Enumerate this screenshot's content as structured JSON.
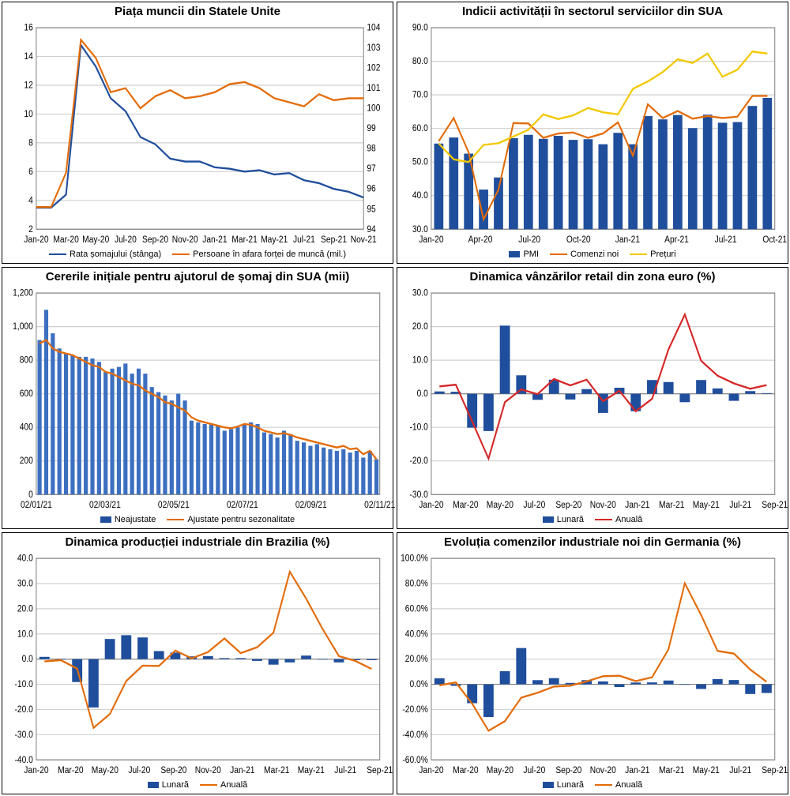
{
  "colors": {
    "blue_line": "#1f4e9c",
    "orange_line": "#e36c0a",
    "red_line": "#d62728",
    "yellow_line": "#f2c800",
    "bar_blue": "#1f4e9c",
    "bar_blue_light": "#3c6fc0",
    "grid": "#d0d0d0",
    "axis": "#808080",
    "text": "#000000"
  },
  "x_labels_jan20_nov21_bi": [
    "Jan-20",
    "Mar-20",
    "May-20",
    "Jul-20",
    "Sep-20",
    "Nov-20",
    "Jan-21",
    "Mar-21",
    "May-21",
    "Jul-21",
    "Sep-21",
    "Nov-21"
  ],
  "x_labels_jan20_oct21_q": [
    "Jan-20",
    "Apr-20",
    "Jul-20",
    "Oct-20",
    "Jan-21",
    "Apr-21",
    "Jul-21",
    "Oct-21"
  ],
  "x_labels_jan20_sep21_bi": [
    "Jan-20",
    "Mar-20",
    "May-20",
    "Jul-20",
    "Sep-20",
    "Nov-20",
    "Jan-21",
    "Mar-21",
    "May-21",
    "Jul-21",
    "Sep-21"
  ],
  "x_labels_claims": [
    "02/01/21",
    "02/03/21",
    "02/05/21",
    "02/07/21",
    "02/09/21",
    "02/11/21"
  ],
  "chart1": {
    "title": "Piața muncii din Statele Unite",
    "type": "dual-axis-line",
    "y_left": {
      "min": 2,
      "max": 16,
      "step": 2
    },
    "y_right": {
      "min": 94,
      "max": 104,
      "step": 1
    },
    "x_labels_key": "x_labels_jan20_nov21_bi",
    "series": [
      {
        "name": "Rata șomajului (stânga)",
        "color_key": "blue_line",
        "axis": "left",
        "kind": "line",
        "values": [
          3.5,
          3.5,
          4.4,
          14.8,
          13.3,
          11.1,
          10.2,
          8.4,
          7.9,
          6.9,
          6.7,
          6.7,
          6.3,
          6.2,
          6.0,
          6.1,
          5.8,
          5.9,
          5.4,
          5.2,
          4.8,
          4.6,
          4.2
        ]
      },
      {
        "name": "Persoane în afara forței de muncă (mil.)",
        "color_key": "orange_line",
        "axis": "right",
        "kind": "line",
        "values": [
          95.1,
          95.1,
          96.8,
          103.4,
          102.5,
          100.8,
          101.0,
          100.0,
          100.6,
          100.9,
          100.5,
          100.6,
          100.8,
          101.2,
          101.3,
          101.0,
          100.5,
          100.3,
          100.1,
          100.7,
          100.4,
          100.5,
          100.5
        ]
      }
    ],
    "legend": [
      {
        "label": "Rata șomajului (stânga)",
        "kind": "line",
        "color_key": "blue_line"
      },
      {
        "label": "Persoane în afara forței de muncă (mil.)",
        "kind": "line",
        "color_key": "orange_line"
      }
    ]
  },
  "chart2": {
    "title": "Indicii activității în sectorul serviciilor din SUA",
    "type": "bar-line",
    "y": {
      "min": 30,
      "max": 90,
      "step": 10,
      "fmt": "fixed1"
    },
    "x_labels_key": "x_labels_jan20_oct21_q",
    "series": [
      {
        "name": "PMI",
        "color_key": "bar_blue",
        "kind": "bar",
        "values": [
          55.5,
          57.3,
          52.5,
          41.8,
          45.4,
          57.1,
          58.1,
          56.9,
          57.8,
          56.6,
          56.8,
          55.3,
          58.7,
          55.3,
          63.7,
          62.7,
          64.0,
          60.1,
          64.1,
          61.7,
          61.9,
          66.7,
          69.1
        ]
      },
      {
        "name": "Comenzi noi",
        "color_key": "orange_line",
        "kind": "line",
        "values": [
          56.2,
          63.1,
          52.9,
          32.9,
          41.8,
          61.6,
          61.5,
          57.2,
          58.5,
          58.8,
          57.2,
          58.5,
          61.8,
          51.9,
          67.2,
          63.1,
          65.2,
          62.9,
          63.7,
          63.1,
          63.5,
          69.7,
          69.7
        ]
      },
      {
        "name": "Prețuri",
        "color_key": "yellow_line",
        "kind": "line",
        "values": [
          55.5,
          50.8,
          50.0,
          55.1,
          55.6,
          57.6,
          59.6,
          64.2,
          62.8,
          63.9,
          66.1,
          64.8,
          64.2,
          71.8,
          74.0,
          76.8,
          80.6,
          79.5,
          82.3,
          75.4,
          77.5,
          82.9,
          82.3
        ]
      }
    ],
    "legend": [
      {
        "label": "PMI",
        "kind": "bar",
        "color_key": "bar_blue"
      },
      {
        "label": "Comenzi noi",
        "kind": "line",
        "color_key": "orange_line"
      },
      {
        "label": "Prețuri",
        "kind": "line",
        "color_key": "yellow_line"
      }
    ]
  },
  "chart3": {
    "title": "Cererile inițiale pentru ajutorul de șomaj din SUA (mii)",
    "type": "bar-line",
    "y": {
      "min": 0,
      "max": 1200,
      "step": 200,
      "fmt": "comma"
    },
    "x_labels_key": "x_labels_claims",
    "series": [
      {
        "name": "Neajustate",
        "color_key": "bar_blue_light",
        "kind": "bar",
        "values": [
          920,
          1100,
          960,
          870,
          840,
          830,
          820,
          820,
          810,
          790,
          730,
          750,
          760,
          780,
          720,
          750,
          720,
          640,
          610,
          590,
          560,
          600,
          560,
          440,
          430,
          420,
          420,
          410,
          380,
          390,
          400,
          420,
          430,
          420,
          370,
          360,
          340,
          380,
          360,
          320,
          310,
          290,
          300,
          280,
          270,
          260,
          270,
          250,
          260,
          220,
          260,
          210
        ]
      },
      {
        "name": "Ajustate pentru sezonalitate",
        "color_key": "orange_line",
        "kind": "line",
        "values": [
          900,
          920,
          870,
          850,
          840,
          830,
          810,
          790,
          770,
          760,
          730,
          720,
          700,
          680,
          660,
          650,
          620,
          600,
          580,
          550,
          540,
          520,
          500,
          460,
          440,
          430,
          420,
          410,
          400,
          395,
          405,
          420,
          415,
          400,
          380,
          370,
          360,
          365,
          355,
          340,
          330,
          320,
          310,
          300,
          290,
          280,
          290,
          270,
          275,
          240,
          260,
          210
        ]
      }
    ],
    "legend": [
      {
        "label": "Neajustate",
        "kind": "bar",
        "color_key": "bar_blue"
      },
      {
        "label": "Ajustate pentru sezonalitate",
        "kind": "line",
        "color_key": "orange_line"
      }
    ]
  },
  "chart4": {
    "title": "Dinamica vânzărilor retail din zona euro (%)",
    "type": "bar-line",
    "y": {
      "min": -30,
      "max": 30,
      "step": 10,
      "fmt": "fixed1"
    },
    "x_labels_key": "x_labels_jan20_sep21_bi",
    "series": [
      {
        "name": "Lunară",
        "color_key": "bar_blue",
        "kind": "bar",
        "values": [
          0.7,
          0.6,
          -10.1,
          -11.1,
          20.3,
          5.5,
          -1.8,
          4.2,
          -1.7,
          1.4,
          -5.7,
          1.8,
          -5.2,
          4.1,
          3.5,
          -2.5,
          4.1,
          1.6,
          -2.1,
          0.8,
          0.2
        ]
      },
      {
        "name": "Anuală",
        "color_key": "red_line",
        "kind": "line",
        "values": [
          2.2,
          2.7,
          -8.2,
          -19.3,
          -2.5,
          1.3,
          -0.1,
          4.4,
          2.5,
          4.2,
          -2.2,
          0.9,
          -5.2,
          -1.5,
          13.2,
          23.6,
          9.8,
          5.4,
          3.1,
          1.5,
          2.6
        ]
      }
    ],
    "legend": [
      {
        "label": "Lunară",
        "kind": "bar",
        "color_key": "bar_blue"
      },
      {
        "label": "Anuală",
        "kind": "line",
        "color_key": "red_line"
      }
    ]
  },
  "chart5": {
    "title": "Dinamica producției industriale din Brazilia (%)",
    "type": "bar-line",
    "y": {
      "min": -40,
      "max": 40,
      "step": 10,
      "fmt": "fixed1"
    },
    "x_labels_key": "x_labels_jan20_sep21_bi",
    "series": [
      {
        "name": "Lunară",
        "color_key": "bar_blue",
        "kind": "bar",
        "values": [
          0.9,
          -0.2,
          -9.1,
          -19.2,
          8.0,
          9.5,
          8.6,
          3.2,
          2.6,
          1.1,
          1.2,
          0.4,
          0.4,
          -0.7,
          -2.2,
          -1.3,
          1.4,
          0.0,
          -1.3,
          -0.4,
          -0.4
        ]
      },
      {
        "name": "Anuală",
        "color_key": "orange_line",
        "kind": "line",
        "values": [
          -0.9,
          -0.4,
          -3.8,
          -27.3,
          -21.8,
          -8.7,
          -2.6,
          -2.7,
          3.4,
          0.3,
          2.8,
          8.2,
          2.4,
          4.7,
          10.5,
          34.7,
          24.0,
          12.0,
          1.2,
          -0.7,
          -3.9
        ]
      }
    ],
    "legend": [
      {
        "label": "Lunară",
        "kind": "bar",
        "color_key": "bar_blue"
      },
      {
        "label": "Anuală",
        "kind": "line",
        "color_key": "orange_line"
      }
    ]
  },
  "chart6": {
    "title": "Evoluția comenzilor industriale noi din Germania (%)",
    "type": "bar-line",
    "y": {
      "min": -60,
      "max": 100,
      "step": 20,
      "fmt": "pct1"
    },
    "x_labels_key": "x_labels_jan20_sep21_bi",
    "series": [
      {
        "name": "Lunară",
        "color_key": "bar_blue",
        "kind": "bar",
        "values": [
          4.8,
          -1.2,
          -15.0,
          -26.0,
          10.4,
          28.8,
          3.3,
          4.9,
          1.1,
          3.3,
          2.3,
          -2.2,
          1.4,
          1.5,
          3.0,
          -0.2,
          -3.7,
          4.1,
          3.4,
          -7.7,
          -6.9
        ]
      },
      {
        "name": "Anuală",
        "color_key": "orange_line",
        "kind": "line",
        "values": [
          -0.8,
          1.5,
          -15.4,
          -36.9,
          -29.3,
          -10.6,
          -6.7,
          -1.8,
          -1.1,
          2.3,
          6.4,
          6.8,
          2.5,
          5.6,
          27.8,
          80.2,
          54.9,
          26.5,
          24.4,
          11.7,
          2.0
        ]
      }
    ],
    "legend": [
      {
        "label": "Lunară",
        "kind": "bar",
        "color_key": "bar_blue"
      },
      {
        "label": "Anuală",
        "kind": "line",
        "color_key": "orange_line"
      }
    ]
  }
}
